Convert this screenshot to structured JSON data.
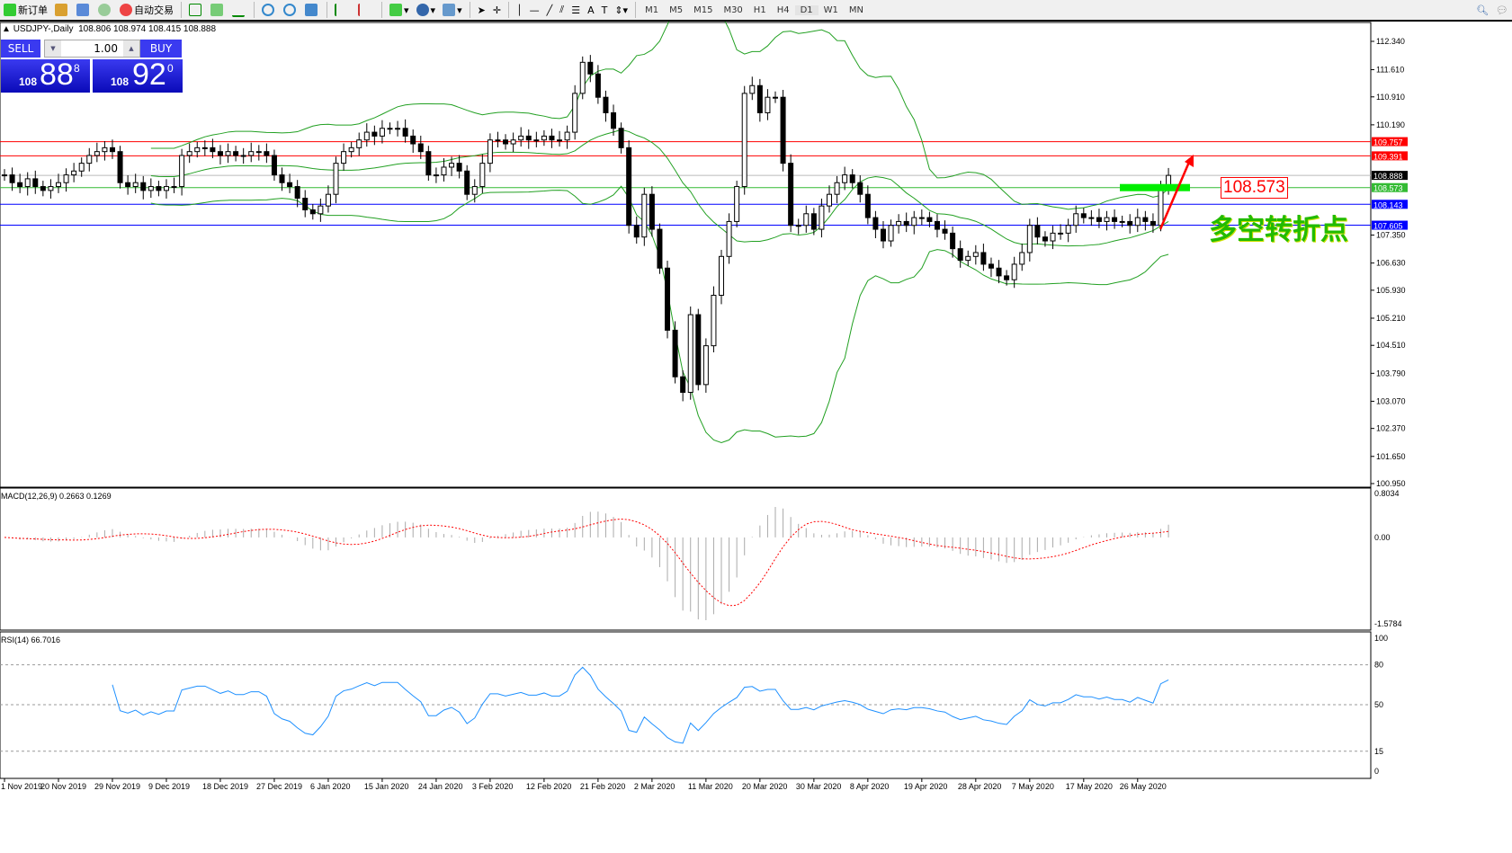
{
  "toolbar": {
    "new_order": "新订单",
    "auto_trading": "自动交易",
    "timeframes": [
      "M1",
      "M5",
      "M15",
      "M30",
      "H1",
      "H4",
      "D1",
      "W1",
      "MN"
    ],
    "active_timeframe": "D1"
  },
  "header": {
    "symbol": "USDJPY-,Daily",
    "ohlc": "108.806 108.974 108.415 108.888"
  },
  "trade_panel": {
    "sell_label": "SELL",
    "buy_label": "BUY",
    "lot": "1.00",
    "sell_big": "108",
    "sell_main": "88",
    "sell_pip": "8",
    "buy_big": "108",
    "buy_main": "92",
    "buy_pip": "0"
  },
  "annotation": {
    "text": "多空转折点",
    "level": "108.573"
  },
  "colors": {
    "up_line": "#ff0000",
    "support": "#0000ff",
    "pivot": "#00cc00",
    "bands": "#22a022",
    "rsi": "#1e90ff",
    "macd_signal": "#ff0000"
  },
  "chart_data": {
    "type": "candlestick",
    "symbol": "USDJPY-",
    "timeframe": "Daily",
    "price_axis_ticks": [
      "112.340",
      "111.610",
      "110.910",
      "110.190",
      "107.350",
      "106.630",
      "105.930",
      "105.210",
      "104.510",
      "103.790",
      "103.070",
      "102.370",
      "101.650",
      "100.950"
    ],
    "ylim": [
      100.95,
      112.34
    ],
    "levels": [
      {
        "value": "109.757",
        "color": "#ff0000"
      },
      {
        "value": "109.391",
        "color": "#ff0000"
      },
      {
        "value": "108.888",
        "color": "#000000"
      },
      {
        "value": "108.573",
        "color": "#33bb33"
      },
      {
        "value": "108.143",
        "color": "#0000ff"
      },
      {
        "value": "107.605",
        "color": "#0000ff"
      }
    ],
    "date_labels": [
      "1 Nov 2019",
      "20 Nov 2019",
      "29 Nov 2019",
      "9 Dec 2019",
      "18 Dec 2019",
      "27 Dec 2019",
      "6 Jan 2020",
      "15 Jan 2020",
      "24 Jan 2020",
      "3 Feb 2020",
      "12 Feb 2020",
      "21 Feb 2020",
      "2 Mar 2020",
      "11 Mar 2020",
      "20 Mar 2020",
      "30 Mar 2020",
      "8 Apr 2020",
      "19 Apr 2020",
      "28 Apr 2020",
      "7 May 2020",
      "17 May 2020",
      "26 May 2020"
    ],
    "closes": [
      108.9,
      108.7,
      108.6,
      108.8,
      108.6,
      108.5,
      108.6,
      108.7,
      108.9,
      109.0,
      109.2,
      109.4,
      109.5,
      109.6,
      109.5,
      108.7,
      108.6,
      108.7,
      108.5,
      108.6,
      108.5,
      108.6,
      108.6,
      109.4,
      109.5,
      109.6,
      109.6,
      109.5,
      109.4,
      109.5,
      109.4,
      109.4,
      109.5,
      109.5,
      109.4,
      108.9,
      108.7,
      108.6,
      108.3,
      108.0,
      107.9,
      108.1,
      108.4,
      109.2,
      109.5,
      109.6,
      109.8,
      110.0,
      109.9,
      110.1,
      110.1,
      110.1,
      109.9,
      109.7,
      109.5,
      108.9,
      108.9,
      109.1,
      109.2,
      109.0,
      108.4,
      108.6,
      109.2,
      109.8,
      109.8,
      109.7,
      109.8,
      109.9,
      109.8,
      109.8,
      109.9,
      109.8,
      109.8,
      110.0,
      111.0,
      111.8,
      111.5,
      110.9,
      110.5,
      110.1,
      109.6,
      107.6,
      107.3,
      108.4,
      107.5,
      106.5,
      104.9,
      103.7,
      103.3,
      105.3,
      103.5,
      104.5,
      105.8,
      106.8,
      107.7,
      108.6,
      111.0,
      111.2,
      110.5,
      110.9,
      110.9,
      109.2,
      107.6,
      107.6,
      107.9,
      107.5,
      108.1,
      108.4,
      108.7,
      108.9,
      108.7,
      108.4,
      107.8,
      107.5,
      107.2,
      107.6,
      107.7,
      107.6,
      107.8,
      107.8,
      107.7,
      107.5,
      107.4,
      107.0,
      106.7,
      106.8,
      106.9,
      106.6,
      106.5,
      106.3,
      106.2,
      106.6,
      106.9,
      107.6,
      107.3,
      107.2,
      107.4,
      107.4,
      107.6,
      107.9,
      107.8,
      107.8,
      107.7,
      107.8,
      107.7,
      107.7,
      107.6,
      107.8,
      107.7,
      107.6,
      108.6,
      108.888
    ],
    "indicators": {
      "bollinger": {
        "period": 20,
        "deviation": 2
      },
      "macd": {
        "label": "MACD(12,26,9) 0.2663 0.1269",
        "ticks": [
          "0.8034",
          "0.00",
          "-1.5784"
        ],
        "range": [
          -1.5784,
          0.8034
        ]
      },
      "rsi": {
        "label": "RSI(14) 66.7016",
        "ticks": [
          "100",
          "80",
          "50",
          "15",
          "0"
        ],
        "levels": [
          80,
          50,
          15
        ]
      }
    }
  }
}
